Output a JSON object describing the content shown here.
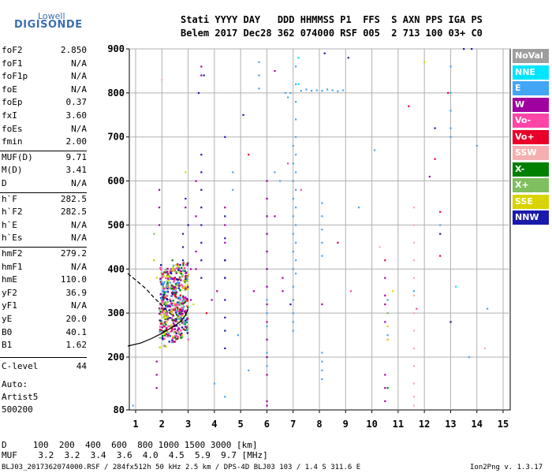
{
  "logo": {
    "line1": "Lowell",
    "line2": "DIGISONDE"
  },
  "header": {
    "line1": "Stati YYYY DAY   DDD HHMMSS P1  FFS  S AXN PPS IGA PS",
    "line2": "Belem 2017 Dec28 362 074000 RSF 005  2 713 100 03+ C0"
  },
  "params": [
    {
      "name": "foF2",
      "value": "2.850"
    },
    {
      "name": "foF1",
      "value": "N/A"
    },
    {
      "name": "foF1p",
      "value": "N/A"
    },
    {
      "name": "foE",
      "value": "N/A"
    },
    {
      "name": "foEp",
      "value": "0.37"
    },
    {
      "name": "fxI",
      "value": "3.60"
    },
    {
      "name": "foEs",
      "value": "N/A"
    },
    {
      "name": "fmin",
      "value": "2.00"
    },
    {
      "name": "MUF(D)",
      "value": "9.71"
    },
    {
      "name": "M(D)",
      "value": "3.41"
    },
    {
      "name": "D",
      "value": "N/A"
    },
    {
      "name": "h`F",
      "value": "282.5"
    },
    {
      "name": "h`F2",
      "value": "282.5"
    },
    {
      "name": "h`E",
      "value": "N/A"
    },
    {
      "name": "h`Es",
      "value": "N/A"
    },
    {
      "name": "hmF2",
      "value": "279.2"
    },
    {
      "name": "hmF1",
      "value": "N/A"
    },
    {
      "name": "hmE",
      "value": "110.0"
    },
    {
      "name": "yF2",
      "value": "36.9"
    },
    {
      "name": "yF1",
      "value": "N/A"
    },
    {
      "name": "yE",
      "value": "20.0"
    },
    {
      "name": "B0",
      "value": "40.1"
    },
    {
      "name": "B1",
      "value": "1.62"
    }
  ],
  "clevel": {
    "name": "C-level",
    "value": "44"
  },
  "auto": {
    "line1": "Auto:",
    "line2": "Artist5",
    "line3": "500200"
  },
  "legend": [
    {
      "label": "NoVal",
      "color": "#9e9e9e"
    },
    {
      "label": "NNE",
      "color": "#00e5ff"
    },
    {
      "label": "E",
      "color": "#42a5f5"
    },
    {
      "label": "W",
      "color": "#a0009f"
    },
    {
      "label": "Vo-",
      "color": "#ff45a8"
    },
    {
      "label": "Vo+",
      "color": "#e8002a"
    },
    {
      "label": "SSW",
      "color": "#f4b0b0"
    },
    {
      "label": "X-",
      "color": "#007f00"
    },
    {
      "label": "X+",
      "color": "#7fbf5f"
    },
    {
      "label": "SSE",
      "color": "#d9d400"
    },
    {
      "label": "NNW",
      "color": "#1a1aaa"
    }
  ],
  "footer": {
    "d_row": "D     100  200  400  600  800 1000 1500 3000 [km]",
    "muf_row": "MUF    3.2  3.2  3.4  3.6  4.0  4.5  5.9  9.7 [MHz]",
    "info": "BLJ03_2017362074000.RSF / 284fx512h 50 kHz 2.5 km / DPS-4D BLJ03 103 / 1.4 S 311.6 E",
    "version": "Ion2Png v. 1.3.17"
  },
  "chart_data": {
    "type": "scatter",
    "title": "",
    "xlabel": "",
    "ylabel": "",
    "xlim": [
      0.7,
      15.2
    ],
    "ylim": [
      80,
      900
    ],
    "xticks": [
      1,
      2,
      3,
      4,
      5,
      6,
      7,
      8,
      9,
      10,
      11,
      12,
      13,
      14,
      15
    ],
    "yticks": [
      80,
      200,
      300,
      400,
      500,
      600,
      700,
      800,
      900
    ],
    "grid": true,
    "legend_position": "right",
    "series": [
      {
        "name": "E",
        "color": "#42a5f5",
        "points": [
          [
            7.1,
            860
          ],
          [
            7.1,
            820
          ],
          [
            7.1,
            780
          ],
          [
            7.1,
            740
          ],
          [
            7.1,
            700
          ],
          [
            7.1,
            660
          ],
          [
            7.1,
            620
          ],
          [
            7.1,
            580
          ],
          [
            7.1,
            540
          ],
          [
            7.1,
            500
          ],
          [
            7.1,
            460
          ],
          [
            7.1,
            420
          ],
          [
            7.1,
            390
          ],
          [
            7.0,
            680
          ],
          [
            7.0,
            640
          ],
          [
            7.0,
            600
          ],
          [
            7.0,
            560
          ],
          [
            7.0,
            520
          ],
          [
            7.0,
            480
          ],
          [
            7.0,
            440
          ],
          [
            7.0,
            400
          ],
          [
            7.0,
            360
          ],
          [
            7.0,
            330
          ],
          [
            7.0,
            300
          ],
          [
            7.0,
            280
          ],
          [
            7.0,
            260
          ],
          [
            6.0,
            560
          ],
          [
            6.0,
            520
          ],
          [
            6.0,
            480
          ],
          [
            6.0,
            440
          ],
          [
            6.0,
            400
          ],
          [
            6.0,
            360
          ],
          [
            6.0,
            330
          ],
          [
            6.0,
            300
          ],
          [
            6.0,
            270
          ],
          [
            6.0,
            240
          ],
          [
            6.0,
            210
          ],
          [
            6.0,
            180
          ],
          [
            7.3,
            805
          ],
          [
            7.5,
            808
          ],
          [
            7.7,
            805
          ],
          [
            7.9,
            806
          ],
          [
            8.1,
            805
          ],
          [
            8.3,
            808
          ],
          [
            8.5,
            806
          ],
          [
            8.7,
            804
          ],
          [
            8.9,
            806
          ],
          [
            6.7,
            800
          ],
          [
            6.8,
            790
          ],
          [
            6.9,
            800
          ],
          [
            8.1,
            550
          ],
          [
            8.1,
            520
          ],
          [
            8.1,
            490
          ],
          [
            8.1,
            460
          ],
          [
            8.1,
            430
          ],
          [
            8.1,
            210
          ],
          [
            8.1,
            190
          ],
          [
            8.1,
            170
          ],
          [
            8.1,
            150
          ],
          [
            13.0,
            860
          ],
          [
            13.0,
            800
          ],
          [
            13.0,
            760
          ],
          [
            13.0,
            720
          ],
          [
            13.0,
            700
          ],
          [
            5.7,
            870
          ],
          [
            5.7,
            840
          ],
          [
            5.7,
            810
          ],
          [
            4.7,
            620
          ],
          [
            4.7,
            580
          ],
          [
            4.9,
            250
          ],
          [
            5.3,
            170
          ],
          [
            6.3,
            620
          ],
          [
            6.5,
            600
          ],
          [
            9.5,
            540
          ],
          [
            10.1,
            670
          ],
          [
            10.6,
            330
          ],
          [
            10.6,
            250
          ],
          [
            11.6,
            350
          ],
          [
            12.6,
            500
          ],
          [
            13.7,
            200
          ],
          [
            14.0,
            680
          ],
          [
            14.4,
            310
          ],
          [
            4.0,
            140
          ],
          [
            4.4,
            110
          ],
          [
            0.9,
            90
          ]
        ]
      },
      {
        "name": "W",
        "color": "#a0009f",
        "points": [
          [
            3.5,
            860
          ],
          [
            3.5,
            840
          ],
          [
            3.3,
            600
          ],
          [
            3.3,
            520
          ],
          [
            3.3,
            440
          ],
          [
            3.3,
            400
          ],
          [
            3.1,
            400
          ],
          [
            3.1,
            330
          ],
          [
            4.4,
            540
          ],
          [
            4.4,
            500
          ],
          [
            4.4,
            460
          ],
          [
            4.4,
            420
          ],
          [
            4.4,
            380
          ],
          [
            6.0,
            600
          ],
          [
            6.0,
            560
          ],
          [
            6.0,
            520
          ],
          [
            6.0,
            480
          ],
          [
            6.0,
            440
          ],
          [
            6.0,
            400
          ],
          [
            6.0,
            360
          ],
          [
            6.0,
            320
          ],
          [
            6.0,
            280
          ],
          [
            6.0,
            240
          ],
          [
            6.0,
            200
          ],
          [
            6.0,
            160
          ],
          [
            6.0,
            100
          ],
          [
            6.0,
            90
          ],
          [
            10.5,
            380
          ],
          [
            10.5,
            340
          ],
          [
            10.5,
            320
          ],
          [
            10.5,
            280
          ],
          [
            10.5,
            160
          ],
          [
            10.5,
            130
          ],
          [
            10.5,
            100
          ],
          [
            1.9,
            580
          ],
          [
            1.9,
            540
          ],
          [
            1.9,
            500
          ],
          [
            2.9,
            540
          ],
          [
            3.9,
            330
          ],
          [
            4.1,
            350
          ],
          [
            5.5,
            350
          ],
          [
            6.3,
            850
          ],
          [
            6.3,
            520
          ],
          [
            6.6,
            380
          ],
          [
            6.6,
            350
          ],
          [
            8.1,
            320
          ],
          [
            12.2,
            610
          ],
          [
            1.8,
            130
          ],
          [
            1.8,
            160
          ],
          [
            1.8,
            190
          ]
        ]
      },
      {
        "name": "Vo-",
        "color": "#ff45a8",
        "points": [
          [
            3.0,
            240
          ],
          [
            2.7,
            330
          ],
          [
            2.2,
            300
          ],
          [
            6.8,
            640
          ],
          [
            7.3,
            580
          ],
          [
            9.2,
            350
          ],
          [
            10.6,
            240
          ],
          [
            11.7,
            310
          ]
        ]
      },
      {
        "name": "Vo+",
        "color": "#e8002a",
        "points": [
          [
            2.5,
            340
          ],
          [
            2.9,
            300
          ],
          [
            12.6,
            430
          ],
          [
            3.7,
            300
          ],
          [
            5.3,
            660
          ],
          [
            8.7,
            460
          ],
          [
            10.5,
            420
          ],
          [
            11.4,
            770
          ],
          [
            12.9,
            800
          ],
          [
            12.4,
            650
          ],
          [
            12.6,
            530
          ]
        ]
      },
      {
        "name": "SSW",
        "color": "#f4b0b0",
        "points": [
          [
            11.6,
            540
          ],
          [
            11.6,
            500
          ],
          [
            11.6,
            460
          ],
          [
            11.6,
            420
          ],
          [
            11.6,
            380
          ],
          [
            11.6,
            340
          ],
          [
            11.6,
            300
          ],
          [
            11.6,
            260
          ],
          [
            11.6,
            220
          ],
          [
            11.6,
            180
          ],
          [
            11.6,
            140
          ],
          [
            11.6,
            110
          ],
          [
            11.6,
            90
          ],
          [
            2.0,
            830
          ],
          [
            10.3,
            450
          ],
          [
            14.3,
            220
          ]
        ]
      },
      {
        "name": "X-",
        "color": "#007f00",
        "points": [
          [
            10.6,
            130
          ],
          [
            2.4,
            420
          ]
        ]
      },
      {
        "name": "X+",
        "color": "#7fbf5f",
        "points": [
          [
            1.7,
            480
          ],
          [
            1.7,
            420
          ],
          [
            2.2,
            360
          ],
          [
            10.6,
            300
          ]
        ]
      },
      {
        "name": "SSE",
        "color": "#d9d400",
        "points": [
          [
            1.7,
            420
          ],
          [
            1.8,
            380
          ],
          [
            2.2,
            280
          ],
          [
            2.9,
            620
          ],
          [
            3.2,
            320
          ],
          [
            10.6,
            270
          ],
          [
            10.6,
            240
          ],
          [
            10.8,
            350
          ],
          [
            12.0,
            870
          ]
        ]
      },
      {
        "name": "NNW",
        "color": "#1a1aaa",
        "points": [
          [
            3.5,
            660
          ],
          [
            3.5,
            620
          ],
          [
            3.5,
            580
          ],
          [
            3.5,
            540
          ],
          [
            3.5,
            500
          ],
          [
            3.5,
            460
          ],
          [
            3.5,
            420
          ],
          [
            3.5,
            380
          ],
          [
            4.4,
            700
          ],
          [
            4.4,
            520
          ],
          [
            4.4,
            470
          ],
          [
            4.4,
            420
          ],
          [
            4.4,
            380
          ],
          [
            4.4,
            330
          ],
          [
            4.4,
            290
          ],
          [
            4.4,
            260
          ],
          [
            4.4,
            220
          ],
          [
            2.8,
            480
          ],
          [
            2.8,
            450
          ],
          [
            2.8,
            420
          ],
          [
            2.9,
            560
          ],
          [
            3.0,
            500
          ],
          [
            12.4,
            720
          ],
          [
            12.6,
            480
          ],
          [
            13.0,
            280
          ],
          [
            13.5,
            900
          ],
          [
            13.8,
            900
          ],
          [
            8.2,
            890
          ],
          [
            9.1,
            880
          ],
          [
            6.9,
            320
          ],
          [
            3.6,
            840
          ],
          [
            3.4,
            800
          ],
          [
            5.1,
            750
          ]
        ]
      },
      {
        "name": "NNE",
        "color": "#00e5ff",
        "points": [
          [
            7.2,
            880
          ],
          [
            7.2,
            820
          ],
          [
            13.2,
            360
          ]
        ]
      }
    ],
    "dense_cluster": {
      "x_range": [
        1.9,
        3.0
      ],
      "y_range": [
        250,
        420
      ],
      "colors": [
        "#a0009f",
        "#e8002a",
        "#ff45a8",
        "#1a1aaa",
        "#42a5f5",
        "#d9d400",
        "#7fbf5f",
        "#007f00"
      ]
    },
    "curves": [
      {
        "name": "profile-solid",
        "style": "solid",
        "points": [
          [
            0.7,
            225
          ],
          [
            1.2,
            232
          ],
          [
            1.6,
            242
          ],
          [
            2.0,
            254
          ],
          [
            2.4,
            268
          ],
          [
            2.7,
            280
          ],
          [
            2.9,
            295
          ],
          [
            3.0,
            310
          ]
        ]
      },
      {
        "name": "profile-dashed",
        "style": "dashed",
        "points": [
          [
            0.7,
            390
          ],
          [
            1.0,
            375
          ],
          [
            1.4,
            355
          ],
          [
            1.7,
            335
          ],
          [
            2.0,
            318
          ],
          [
            2.2,
            305
          ],
          [
            2.4,
            295
          ]
        ]
      }
    ]
  }
}
